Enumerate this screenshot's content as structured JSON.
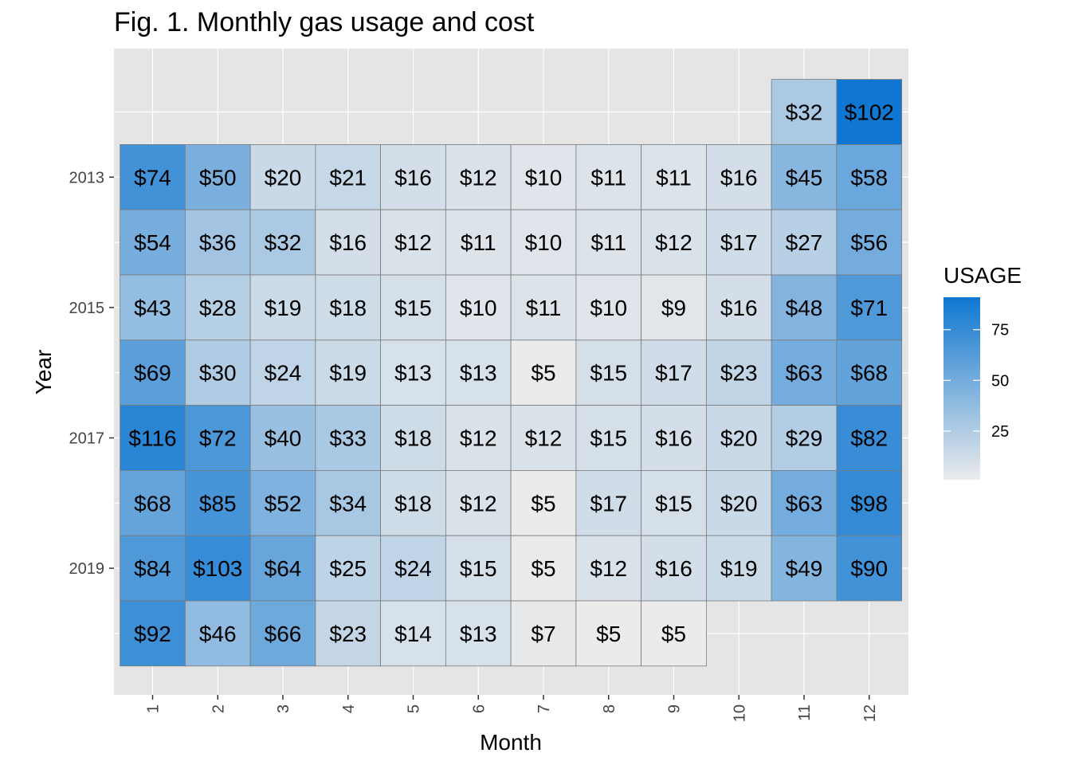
{
  "chart_data": {
    "type": "heatmap",
    "title": "Fig. 1. Monthly gas usage and cost",
    "xlabel": "Month",
    "ylabel": "Year",
    "x_categories": [
      "1",
      "2",
      "3",
      "4",
      "5",
      "6",
      "7",
      "8",
      "9",
      "10",
      "11",
      "12"
    ],
    "y_range": [
      2012,
      2020
    ],
    "y_reversed": true,
    "y_tick_labels": [
      "2013",
      "2015",
      "2017",
      "2019"
    ],
    "colors": {
      "panel_bg": "#e5e5e5",
      "grid": "#ffffff",
      "low": "#ebebeb",
      "high": "#0f77d1",
      "tile_border": "#7a7a7a"
    },
    "legend": {
      "title": "USAGE",
      "position": "right",
      "min": 1,
      "max": 91,
      "ticks": [
        {
          "value": 25,
          "label": "25"
        },
        {
          "value": 50,
          "label": "50"
        },
        {
          "value": 75,
          "label": "75"
        }
      ]
    },
    "tiles": [
      {
        "year": 2012,
        "month": 11,
        "label": "$32",
        "usage": 27
      },
      {
        "year": 2012,
        "month": 12,
        "label": "$102",
        "usage": 91
      },
      {
        "year": 2013,
        "month": 1,
        "label": "$74",
        "usage": 70
      },
      {
        "year": 2013,
        "month": 2,
        "label": "$50",
        "usage": 47
      },
      {
        "year": 2013,
        "month": 3,
        "label": "$20",
        "usage": 15
      },
      {
        "year": 2013,
        "month": 4,
        "label": "$21",
        "usage": 16
      },
      {
        "year": 2013,
        "month": 5,
        "label": "$16",
        "usage": 11
      },
      {
        "year": 2013,
        "month": 6,
        "label": "$12",
        "usage": 8
      },
      {
        "year": 2013,
        "month": 7,
        "label": "$10",
        "usage": 6
      },
      {
        "year": 2013,
        "month": 8,
        "label": "$11",
        "usage": 7
      },
      {
        "year": 2013,
        "month": 9,
        "label": "$11",
        "usage": 7
      },
      {
        "year": 2013,
        "month": 10,
        "label": "$16",
        "usage": 11
      },
      {
        "year": 2013,
        "month": 11,
        "label": "$45",
        "usage": 42
      },
      {
        "year": 2013,
        "month": 12,
        "label": "$58",
        "usage": 54
      },
      {
        "year": 2014,
        "month": 1,
        "label": "$54",
        "usage": 48
      },
      {
        "year": 2014,
        "month": 2,
        "label": "$36",
        "usage": 31
      },
      {
        "year": 2014,
        "month": 3,
        "label": "$32",
        "usage": 27
      },
      {
        "year": 2014,
        "month": 4,
        "label": "$16",
        "usage": 11
      },
      {
        "year": 2014,
        "month": 5,
        "label": "$12",
        "usage": 8
      },
      {
        "year": 2014,
        "month": 6,
        "label": "$11",
        "usage": 7
      },
      {
        "year": 2014,
        "month": 7,
        "label": "$10",
        "usage": 6
      },
      {
        "year": 2014,
        "month": 8,
        "label": "$11",
        "usage": 7
      },
      {
        "year": 2014,
        "month": 9,
        "label": "$12",
        "usage": 8
      },
      {
        "year": 2014,
        "month": 10,
        "label": "$17",
        "usage": 12
      },
      {
        "year": 2014,
        "month": 11,
        "label": "$27",
        "usage": 22
      },
      {
        "year": 2014,
        "month": 12,
        "label": "$56",
        "usage": 50
      },
      {
        "year": 2015,
        "month": 1,
        "label": "$43",
        "usage": 37
      },
      {
        "year": 2015,
        "month": 2,
        "label": "$28",
        "usage": 23
      },
      {
        "year": 2015,
        "month": 3,
        "label": "$19",
        "usage": 14
      },
      {
        "year": 2015,
        "month": 4,
        "label": "$18",
        "usage": 13
      },
      {
        "year": 2015,
        "month": 5,
        "label": "$15",
        "usage": 10
      },
      {
        "year": 2015,
        "month": 6,
        "label": "$10",
        "usage": 6
      },
      {
        "year": 2015,
        "month": 7,
        "label": "$11",
        "usage": 7
      },
      {
        "year": 2015,
        "month": 8,
        "label": "$10",
        "usage": 6
      },
      {
        "year": 2015,
        "month": 9,
        "label": "$9",
        "usage": 5
      },
      {
        "year": 2015,
        "month": 10,
        "label": "$16",
        "usage": 11
      },
      {
        "year": 2015,
        "month": 11,
        "label": "$48",
        "usage": 44
      },
      {
        "year": 2015,
        "month": 12,
        "label": "$71",
        "usage": 65
      },
      {
        "year": 2016,
        "month": 1,
        "label": "$69",
        "usage": 60
      },
      {
        "year": 2016,
        "month": 2,
        "label": "$30",
        "usage": 25
      },
      {
        "year": 2016,
        "month": 3,
        "label": "$24",
        "usage": 19
      },
      {
        "year": 2016,
        "month": 4,
        "label": "$19",
        "usage": 14
      },
      {
        "year": 2016,
        "month": 5,
        "label": "$13",
        "usage": 9
      },
      {
        "year": 2016,
        "month": 6,
        "label": "$13",
        "usage": 9
      },
      {
        "year": 2016,
        "month": 7,
        "label": "$5",
        "usage": 1
      },
      {
        "year": 2016,
        "month": 8,
        "label": "$15",
        "usage": 10
      },
      {
        "year": 2016,
        "month": 9,
        "label": "$17",
        "usage": 12
      },
      {
        "year": 2016,
        "month": 10,
        "label": "$23",
        "usage": 18
      },
      {
        "year": 2016,
        "month": 11,
        "label": "$63",
        "usage": 50
      },
      {
        "year": 2016,
        "month": 12,
        "label": "$68",
        "usage": 57
      },
      {
        "year": 2017,
        "month": 1,
        "label": "$116",
        "usage": 80
      },
      {
        "year": 2017,
        "month": 2,
        "label": "$72",
        "usage": 66
      },
      {
        "year": 2017,
        "month": 3,
        "label": "$40",
        "usage": 34
      },
      {
        "year": 2017,
        "month": 4,
        "label": "$33",
        "usage": 28
      },
      {
        "year": 2017,
        "month": 5,
        "label": "$18",
        "usage": 13
      },
      {
        "year": 2017,
        "month": 6,
        "label": "$12",
        "usage": 8
      },
      {
        "year": 2017,
        "month": 7,
        "label": "$12",
        "usage": 8
      },
      {
        "year": 2017,
        "month": 8,
        "label": "$15",
        "usage": 10
      },
      {
        "year": 2017,
        "month": 9,
        "label": "$16",
        "usage": 11
      },
      {
        "year": 2017,
        "month": 10,
        "label": "$20",
        "usage": 15
      },
      {
        "year": 2017,
        "month": 11,
        "label": "$29",
        "usage": 24
      },
      {
        "year": 2017,
        "month": 12,
        "label": "$82",
        "usage": 74
      },
      {
        "year": 2018,
        "month": 1,
        "label": "$68",
        "usage": 56
      },
      {
        "year": 2018,
        "month": 2,
        "label": "$85",
        "usage": 68
      },
      {
        "year": 2018,
        "month": 3,
        "label": "$52",
        "usage": 45
      },
      {
        "year": 2018,
        "month": 4,
        "label": "$34",
        "usage": 29
      },
      {
        "year": 2018,
        "month": 5,
        "label": "$18",
        "usage": 13
      },
      {
        "year": 2018,
        "month": 6,
        "label": "$12",
        "usage": 8
      },
      {
        "year": 2018,
        "month": 7,
        "label": "$5",
        "usage": 1
      },
      {
        "year": 2018,
        "month": 8,
        "label": "$17",
        "usage": 12
      },
      {
        "year": 2018,
        "month": 9,
        "label": "$15",
        "usage": 10
      },
      {
        "year": 2018,
        "month": 10,
        "label": "$20",
        "usage": 15
      },
      {
        "year": 2018,
        "month": 11,
        "label": "$63",
        "usage": 50
      },
      {
        "year": 2018,
        "month": 12,
        "label": "$98",
        "usage": 76
      },
      {
        "year": 2019,
        "month": 1,
        "label": "$84",
        "usage": 65
      },
      {
        "year": 2019,
        "month": 2,
        "label": "$103",
        "usage": 75
      },
      {
        "year": 2019,
        "month": 3,
        "label": "$64",
        "usage": 55
      },
      {
        "year": 2019,
        "month": 4,
        "label": "$25",
        "usage": 20
      },
      {
        "year": 2019,
        "month": 5,
        "label": "$24",
        "usage": 19
      },
      {
        "year": 2019,
        "month": 6,
        "label": "$15",
        "usage": 10
      },
      {
        "year": 2019,
        "month": 7,
        "label": "$5",
        "usage": 1
      },
      {
        "year": 2019,
        "month": 8,
        "label": "$12",
        "usage": 8
      },
      {
        "year": 2019,
        "month": 9,
        "label": "$16",
        "usage": 11
      },
      {
        "year": 2019,
        "month": 10,
        "label": "$19",
        "usage": 14
      },
      {
        "year": 2019,
        "month": 11,
        "label": "$49",
        "usage": 43
      },
      {
        "year": 2019,
        "month": 12,
        "label": "$90",
        "usage": 70
      },
      {
        "year": 2020,
        "month": 1,
        "label": "$92",
        "usage": 72
      },
      {
        "year": 2020,
        "month": 2,
        "label": "$46",
        "usage": 38
      },
      {
        "year": 2020,
        "month": 3,
        "label": "$66",
        "usage": 52
      },
      {
        "year": 2020,
        "month": 4,
        "label": "$23",
        "usage": 17
      },
      {
        "year": 2020,
        "month": 5,
        "label": "$14",
        "usage": 9
      },
      {
        "year": 2020,
        "month": 6,
        "label": "$13",
        "usage": 9
      },
      {
        "year": 2020,
        "month": 7,
        "label": "$7",
        "usage": 3
      },
      {
        "year": 2020,
        "month": 8,
        "label": "$5",
        "usage": 1
      },
      {
        "year": 2020,
        "month": 9,
        "label": "$5",
        "usage": 1
      }
    ]
  }
}
